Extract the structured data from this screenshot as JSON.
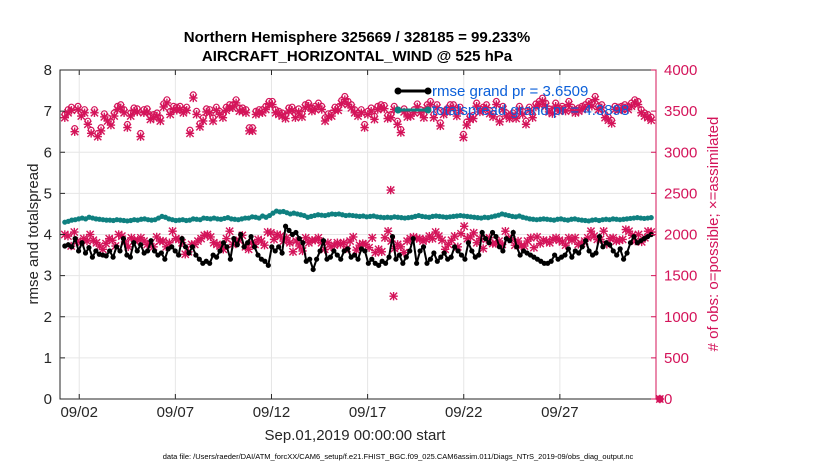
{
  "chart_data": {
    "type": "line",
    "title": "Northern Hemisphere 325669 / 328185 = 99.233%",
    "subtitle": "AIRCRAFT_HORIZONTAL_WIND @ 525 hPa",
    "xlabel": "Sep.01,2019 00:00:00 start",
    "ylabel": "rmse and totalspread",
    "ylabel_right": "# of obs: o=possible; ×=assimilated",
    "xlim": [
      0,
      31
    ],
    "ylim": [
      0,
      8
    ],
    "ylim_right": [
      0,
      4000
    ],
    "x_ticks": [
      1,
      6,
      11,
      16,
      21,
      26
    ],
    "x_tick_labels": [
      "09/02",
      "09/07",
      "09/12",
      "09/17",
      "09/22",
      "09/27"
    ],
    "y_ticks": [
      "0",
      "1",
      "2",
      "3",
      "4",
      "5",
      "6",
      "7",
      "8"
    ],
    "y_ticks_right": [
      "0",
      "500",
      "1000",
      "1500",
      "2000",
      "2500",
      "3000",
      "3500",
      "4000"
    ],
    "colors": {
      "rmse": "#000000",
      "spread": "#0f8080",
      "obs": "#d4145a",
      "legend_text": "#0b5fd9"
    },
    "legend": {
      "position": "top-right",
      "rmse_label": "rmse grand pr = 3.6509",
      "spread_label": "totalspread grand pr = 4.3898"
    },
    "series": [
      {
        "name": "rmse",
        "values": [
          3.72,
          3.75,
          3.7,
          3.9,
          3.6,
          3.8,
          3.55,
          3.68,
          3.45,
          3.6,
          3.52,
          3.5,
          3.48,
          3.6,
          3.45,
          3.7,
          3.6,
          3.9,
          3.5,
          3.45,
          3.8,
          3.6,
          3.75,
          3.55,
          3.6,
          3.85,
          3.6,
          3.5,
          3.55,
          3.4,
          3.65,
          3.7,
          3.6,
          3.5,
          3.9,
          3.7,
          3.55,
          3.7,
          3.5,
          3.4,
          3.3,
          3.35,
          3.3,
          3.5,
          3.45,
          3.6,
          3.8,
          3.7,
          3.4,
          3.9,
          3.75,
          4.0,
          3.7,
          3.8,
          3.95,
          3.7,
          3.5,
          3.4,
          3.35,
          3.25,
          3.7,
          3.6,
          3.7,
          3.55,
          4.2,
          4.1,
          4.0,
          4.05,
          3.9,
          3.8,
          3.35,
          3.4,
          3.15,
          3.4,
          3.6,
          3.85,
          3.4,
          3.45,
          3.6,
          3.5,
          3.4,
          3.6,
          3.65,
          3.45,
          3.5,
          3.4,
          3.65,
          3.6,
          3.3,
          3.4,
          3.3,
          3.25,
          3.35,
          3.3,
          3.45,
          3.95,
          3.4,
          3.5,
          3.3,
          3.45,
          3.6,
          3.9,
          3.3,
          3.6,
          3.7,
          3.3,
          3.4,
          3.55,
          3.35,
          3.45,
          3.55,
          3.4,
          3.45,
          3.7,
          3.6,
          3.5,
          3.4,
          3.8,
          3.6,
          3.45,
          3.5,
          4.05,
          3.9,
          3.8,
          4.05,
          3.95,
          3.7,
          3.6,
          3.9,
          3.85,
          4.05,
          3.7,
          3.5,
          3.6,
          3.55,
          3.5,
          3.45,
          3.4,
          3.35,
          3.3,
          3.3,
          3.35,
          3.5,
          3.4,
          3.45,
          3.5,
          3.65,
          3.45,
          3.6,
          3.55,
          3.7,
          3.85,
          3.6,
          3.5,
          3.55,
          3.95,
          3.7,
          3.8,
          3.75,
          3.6,
          3.5,
          3.65,
          3.4,
          3.55,
          3.8,
          3.95,
          3.8,
          3.85,
          3.9,
          3.95,
          4.0
        ]
      },
      {
        "name": "totalspread",
        "values": [
          4.3,
          4.32,
          4.35,
          4.36,
          4.38,
          4.4,
          4.38,
          4.42,
          4.4,
          4.38,
          4.37,
          4.36,
          4.35,
          4.35,
          4.34,
          4.36,
          4.35,
          4.34,
          4.33,
          4.34,
          4.36,
          4.35,
          4.37,
          4.38,
          4.36,
          4.35,
          4.36,
          4.4,
          4.44,
          4.42,
          4.38,
          4.36,
          4.34,
          4.35,
          4.36,
          4.34,
          4.35,
          4.38,
          4.37,
          4.36,
          4.4,
          4.39,
          4.38,
          4.4,
          4.38,
          4.37,
          4.39,
          4.41,
          4.38,
          4.37,
          4.36,
          4.38,
          4.4,
          4.4,
          4.43,
          4.42,
          4.4,
          4.45,
          4.42,
          4.46,
          4.52,
          4.57,
          4.55,
          4.56,
          4.53,
          4.5,
          4.52,
          4.5,
          4.48,
          4.46,
          4.42,
          4.44,
          4.46,
          4.48,
          4.47,
          4.46,
          4.48,
          4.5,
          4.49,
          4.5,
          4.48,
          4.46,
          4.47,
          4.46,
          4.45,
          4.44,
          4.45,
          4.43,
          4.44,
          4.45,
          4.43,
          4.42,
          4.41,
          4.42,
          4.41,
          4.43,
          4.42,
          4.41,
          4.4,
          4.41,
          4.42,
          4.44,
          4.46,
          4.44,
          4.43,
          4.42,
          4.44,
          4.45,
          4.44,
          4.43,
          4.42,
          4.43,
          4.44,
          4.45,
          4.46,
          4.45,
          4.44,
          4.43,
          4.42,
          4.41,
          4.4,
          4.42,
          4.41,
          4.43,
          4.45,
          4.47,
          4.5,
          4.48,
          4.46,
          4.44,
          4.43,
          4.45,
          4.42,
          4.4,
          4.38,
          4.37,
          4.36,
          4.37,
          4.38,
          4.37,
          4.36,
          4.35,
          4.37,
          4.38,
          4.36,
          4.35,
          4.37,
          4.38,
          4.36,
          4.35,
          4.34,
          4.33,
          4.35,
          4.36,
          4.34,
          4.36,
          4.37,
          4.36,
          4.38,
          4.37,
          4.36,
          4.37,
          4.38,
          4.39,
          4.4,
          4.41,
          4.4,
          4.39,
          4.4,
          4.41
        ]
      },
      {
        "name": "obs_possible",
        "values": [
          3460,
          3520,
          3550,
          3290,
          3560,
          3480,
          3520,
          3380,
          3270,
          3520,
          3230,
          3300,
          3470,
          3420,
          3370,
          3480,
          3560,
          3580,
          3520,
          3340,
          3480,
          3540,
          3530,
          3230,
          3520,
          3530,
          3440,
          3460,
          3480,
          3420,
          3590,
          3640,
          3500,
          3560,
          3550,
          3560,
          3520,
          3550,
          3270,
          3700,
          3500,
          3350,
          3420,
          3530,
          3520,
          3420,
          3550,
          3500,
          3460,
          3550,
          3580,
          3580,
          3640,
          3540,
          3540,
          3520,
          3300,
          3300,
          3500,
          3520,
          3520,
          3560,
          3620,
          3620,
          3520,
          3500,
          3480,
          3450,
          3540,
          3550,
          3460,
          3530,
          3470,
          3580,
          3600,
          3540,
          3560,
          3600,
          3560,
          3420,
          3470,
          3480,
          3550,
          3550,
          3630,
          3680,
          3620,
          3580,
          3520,
          3480,
          3520,
          3340,
          3500,
          3540,
          3440,
          3560,
          3580,
          3570,
          3450,
          3460,
          3560,
          3380,
          3280,
          3530,
          3470,
          3480,
          3520,
          3590,
          3520,
          3460,
          3580,
          3620,
          3460,
          3580,
          3360,
          3500,
          3530,
          3580,
          3580,
          3480,
          3550,
          3220,
          3370,
          3440,
          3450,
          3600,
          3530,
          3550,
          3580,
          3510,
          3470,
          3620,
          3410,
          3560,
          3480,
          3450,
          3480,
          3450,
          3560,
          3500,
          3380,
          3550,
          3460,
          3590,
          3620,
          3660,
          3600,
          3530,
          3510,
          3600,
          3540,
          3560,
          3540,
          3620,
          3550,
          3520,
          3540,
          3560,
          3580,
          3620,
          3600,
          3680,
          3560,
          3580,
          3460,
          3430,
          3390,
          3560,
          3550,
          3560,
          3580,
          3560,
          3600,
          3640,
          3620,
          3520,
          3480,
          3460,
          3430
        ]
      },
      {
        "name": "obs_assimilated",
        "values": [
          2000,
          1980,
          1860,
          2030,
          1920,
          1900,
          1950,
          1920,
          2000,
          1930,
          1900,
          1860,
          1820,
          1890,
          1950,
          1930,
          1860,
          2000,
          1980,
          1910,
          1850,
          1960,
          1930,
          1930,
          1960,
          1920,
          1880,
          1890,
          1850,
          1970,
          1920,
          1920,
          1850,
          1900,
          2040,
          1950,
          1940,
          1900,
          1760,
          1790,
          1880,
          1880,
          1920,
          1950,
          1990,
          2000,
          1970,
          1900,
          1880,
          1860,
          1820,
          1950,
          2040,
          1880,
          1920,
          1930,
          1990,
          1850,
          1820,
          1900,
          1880,
          1940,
          1920,
          1870,
          2030,
          2020,
          1940,
          2000,
          1980,
          1920,
          1960,
          1900,
          1790,
          1920,
          1860,
          1800,
          1960,
          1900,
          1930,
          1930,
          1960,
          1900,
          1820,
          1900,
          1850,
          1870,
          1900,
          1880,
          1900,
          1830,
          1920,
          1970,
          1810,
          1870,
          1890,
          1880,
          1840,
          1960,
          1780,
          1820,
          1790,
          1960,
          2040,
          1920,
          1830,
          1880,
          1850,
          1780,
          1920,
          1950,
          1970,
          1950,
          1950,
          1920,
          1940,
          1980,
          1950,
          2030,
          1980,
          1930,
          1820,
          1880,
          1930,
          1980,
          1850,
          2010,
          2100,
          1950,
          1970,
          2020,
          1900,
          1950,
          1830,
          1940,
          1960,
          1890,
          1890,
          1920,
          1880,
          2040,
          1960,
          1940,
          1870,
          1920,
          1860,
          1860,
          1920,
          1960,
          1840,
          1970,
          1890,
          1930,
          1920,
          1900,
          1940,
          1960,
          1930,
          1910,
          1870,
          1960,
          1930,
          1960,
          1880,
          1890,
          1920,
          1960,
          2040,
          1980,
          1940,
          1940,
          2040,
          1880,
          1950,
          1960,
          1920,
          1930,
          1940,
          2060,
          2040,
          1990,
          1920,
          2000,
          1910,
          1960,
          2040,
          2030
        ]
      }
    ],
    "annotations": {
      "assimilated_outliers": [
        {
          "x": 17.35,
          "y": 1250
        },
        {
          "x": 17.2,
          "y": 2540
        },
        {
          "x": 31.2,
          "y": 0
        }
      ],
      "possible_outliers": [
        {
          "x": 31.2,
          "y": 0
        }
      ]
    }
  },
  "footnote": "data file: /Users/raeder/DAI/ATM_forcXX/CAM6_setup/f.e21.FHIST_BGC.f09_025.CAM6assim.011/Diags_NTrS_2019-09/obs_diag_output.nc"
}
